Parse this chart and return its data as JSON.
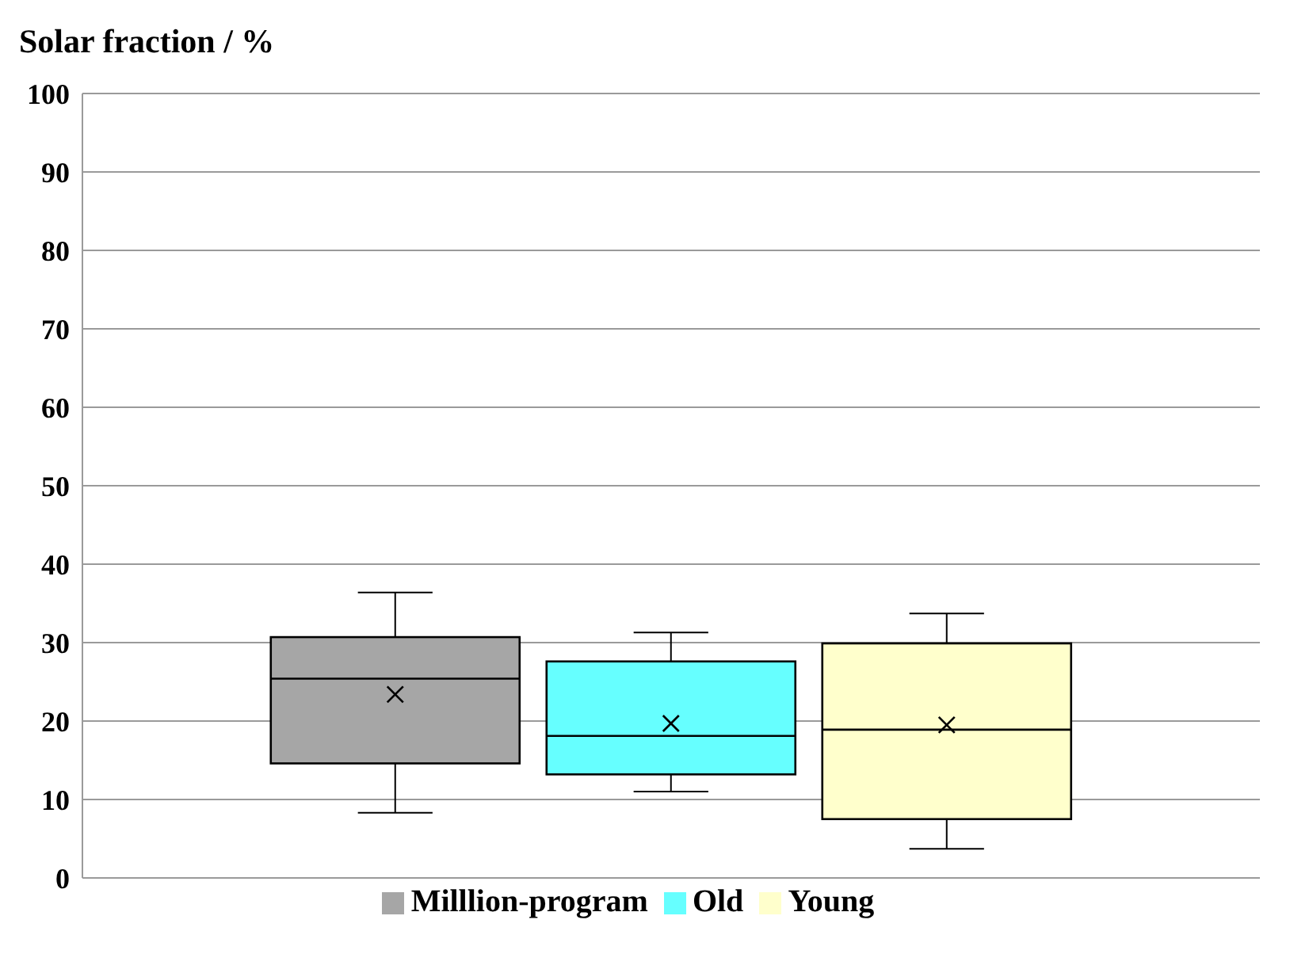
{
  "chart_data": {
    "type": "box",
    "title": "Solar fraction / %",
    "categories": [
      null
    ],
    "series": [
      {
        "name": "Milllion-program",
        "color": "#a6a6a6",
        "boxes": [
          {
            "low": 8.3,
            "q1": 14.6,
            "median": 25.4,
            "q3": 30.7,
            "high": 36.4,
            "mean": 23.4
          }
        ]
      },
      {
        "name": "Old",
        "color": "#66ffff",
        "boxes": [
          {
            "low": 11.0,
            "q1": 13.2,
            "median": 18.1,
            "q3": 27.6,
            "high": 31.3,
            "mean": 19.7
          }
        ]
      },
      {
        "name": "Young",
        "color": "#ffffcc",
        "boxes": [
          {
            "low": 3.7,
            "q1": 7.5,
            "median": 18.9,
            "q3": 29.9,
            "high": 33.7,
            "mean": 19.5
          }
        ]
      }
    ],
    "ylim": [
      0,
      100
    ],
    "yticks": [
      0,
      10,
      20,
      30,
      40,
      50,
      60,
      70,
      80,
      90,
      100
    ],
    "grid": "y",
    "legend": "bottom"
  }
}
